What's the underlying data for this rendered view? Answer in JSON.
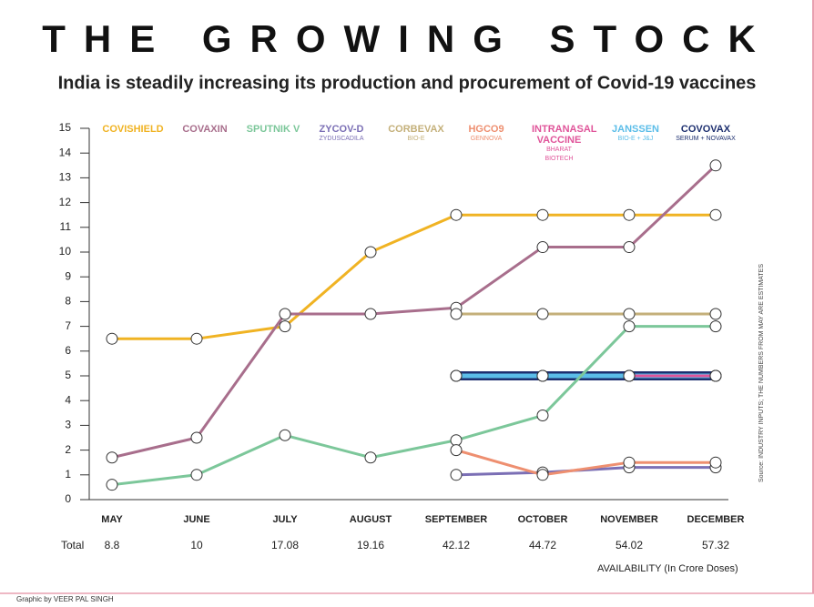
{
  "title": "THE GROWING STOCK",
  "chart_data": {
    "type": "line",
    "subtitle": "India is steadily increasing its production and procurement of Covid-19 vaccines",
    "categories": [
      "MAY",
      "JUNE",
      "JULY",
      "AUGUST",
      "SEPTEMBER",
      "OCTOBER",
      "NOVEMBER",
      "DECEMBER"
    ],
    "series": [
      {
        "name": "COVISHIELD",
        "color": "#f0b323",
        "values": [
          6.5,
          6.5,
          7,
          10,
          11.5,
          11.5,
          11.5,
          11.5
        ]
      },
      {
        "name": "COVAXIN",
        "color": "#a86e8c",
        "values": [
          1.7,
          2.5,
          7.5,
          7.5,
          7.75,
          10.2,
          10.2,
          13.5
        ]
      },
      {
        "name": "SPUTNIK V",
        "color": "#7cc79a",
        "values": [
          0.6,
          1,
          2.6,
          1.7,
          2.4,
          3.4,
          7,
          7
        ]
      },
      {
        "name": "ZYCOV-D",
        "sublabel": "ZYDUSCADILA",
        "color": "#7b6fb5",
        "values": [
          null,
          null,
          null,
          null,
          1,
          1.1,
          1.3,
          1.3
        ]
      },
      {
        "name": "CORBEVAX",
        "sublabel": "BIO-E",
        "color": "#c4b07a",
        "values": [
          null,
          null,
          null,
          null,
          7.5,
          7.5,
          7.5,
          7.5
        ]
      },
      {
        "name": "HGCO9",
        "sublabel": "GENNOVA",
        "color": "#ee8f70",
        "values": [
          null,
          null,
          null,
          null,
          2,
          1,
          1.5,
          1.5
        ]
      },
      {
        "name": "INTRANASAL VACCINE",
        "sublabel": "BHARAT BIOTECH",
        "color": "#e0559a",
        "values": [
          null,
          null,
          null,
          null,
          null,
          null,
          5,
          5
        ]
      },
      {
        "name": "JANSSEN",
        "sublabel": "BIO-E + J&J",
        "color": "#5bbde8",
        "values": [
          null,
          null,
          null,
          null,
          5,
          5,
          5,
          5
        ]
      },
      {
        "name": "COVOVAX",
        "sublabel": "SERUM + NOVAVAX",
        "color": "#1d2f6f",
        "values": [
          null,
          null,
          null,
          null,
          5,
          5,
          5,
          5
        ]
      }
    ],
    "total_label": "Total",
    "totals": [
      8.8,
      10,
      17.08,
      19.16,
      42.12,
      44.72,
      54.02,
      57.32
    ],
    "xlabel": "AVAILABILITY (In Crore Doses)",
    "ylim": [
      0,
      15
    ],
    "yticks": [
      0,
      1,
      2,
      3,
      4,
      5,
      6,
      7,
      8,
      9,
      10,
      11,
      12,
      13,
      14,
      15
    ],
    "source": "Source: INDUSTRY INPUTS; THE NUMBERS FROM MAY ARE ESTIMATES"
  },
  "credit": "Graphic by VEER PAL SINGH"
}
